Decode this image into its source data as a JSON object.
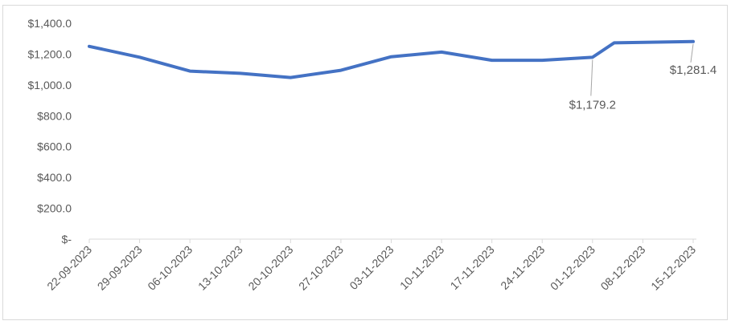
{
  "chart_data": {
    "type": "line",
    "title": "",
    "xlabel": "",
    "ylabel": "",
    "ylim": [
      0,
      1400
    ],
    "y_ticks": [
      {
        "value": 0,
        "label": "$-"
      },
      {
        "value": 200,
        "label": "$200.0"
      },
      {
        "value": 400,
        "label": "$400.0"
      },
      {
        "value": 600,
        "label": "$600.0"
      },
      {
        "value": 800,
        "label": "$800.0"
      },
      {
        "value": 1000,
        "label": "$1,000.0"
      },
      {
        "value": 1200,
        "label": "$1,200.0"
      },
      {
        "value": 1400,
        "label": "$1,400.0"
      }
    ],
    "x_ticks": [
      "22-09-2023",
      "29-09-2023",
      "06-10-2023",
      "13-10-2023",
      "20-10-2023",
      "27-10-2023",
      "03-11-2023",
      "10-11-2023",
      "17-11-2023",
      "24-11-2023",
      "01-12-2023",
      "08-12-2023",
      "15-12-2023"
    ],
    "grid": false,
    "legend": "none",
    "series": [
      {
        "color": "#4472c4",
        "points": [
          {
            "x": "22-09-2023",
            "y": 1250
          },
          {
            "x": "29-09-2023",
            "y": 1180
          },
          {
            "x": "06-10-2023",
            "y": 1090
          },
          {
            "x": "13-10-2023",
            "y": 1075
          },
          {
            "x": "20-10-2023",
            "y": 1048
          },
          {
            "x": "27-10-2023",
            "y": 1095
          },
          {
            "x": "03-11-2023",
            "y": 1183
          },
          {
            "x": "10-11-2023",
            "y": 1213
          },
          {
            "x": "17-11-2023",
            "y": 1160
          },
          {
            "x": "24-11-2023",
            "y": 1160
          },
          {
            "x": "01-12-2023",
            "y": 1179.2
          },
          {
            "x": "04-12-2023",
            "y": 1273
          },
          {
            "x": "15-12-2023",
            "y": 1281.4
          }
        ]
      }
    ],
    "annotations": [
      {
        "x": "01-12-2023",
        "y": 1179.2,
        "text": "$1,179.2"
      },
      {
        "x": "15-12-2023",
        "y": 1281.4,
        "text": "$1,281.4"
      }
    ]
  }
}
